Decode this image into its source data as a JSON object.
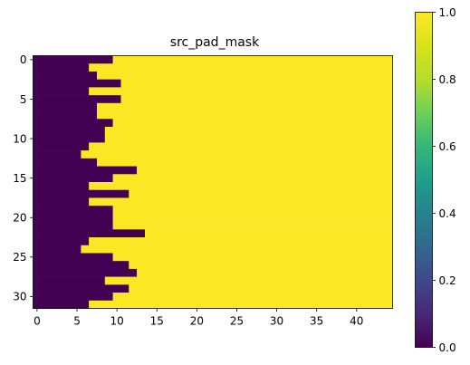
{
  "chart_data": {
    "type": "heatmap",
    "title": "src_pad_mask",
    "xlabel": "",
    "ylabel": "",
    "n_rows": 32,
    "n_cols": 45,
    "pad_start_per_row": [
      10,
      7,
      8,
      11,
      7,
      11,
      8,
      8,
      10,
      9,
      9,
      7,
      6,
      8,
      13,
      10,
      7,
      12,
      7,
      10,
      10,
      10,
      14,
      7,
      6,
      10,
      12,
      13,
      9,
      12,
      10,
      7
    ],
    "value_before_pad": 0,
    "value_from_pad": 1,
    "x_ticks": [
      0,
      5,
      10,
      15,
      20,
      25,
      30,
      35,
      40
    ],
    "y_ticks": [
      0,
      5,
      10,
      15,
      20,
      25,
      30
    ],
    "colormap": "viridis",
    "colors": {
      "low": "#440154",
      "high": "#fde725"
    },
    "colorbar": {
      "range": [
        0.0,
        1.0
      ],
      "ticks": [
        "0.0",
        "0.2",
        "0.4",
        "0.6",
        "0.8",
        "1.0"
      ]
    }
  }
}
